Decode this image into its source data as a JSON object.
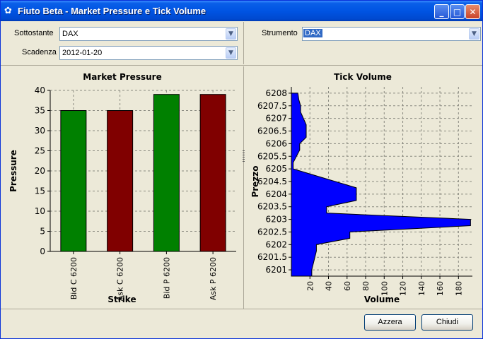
{
  "window": {
    "title": "Fiuto Beta - Market Pressure e Tick Volume"
  },
  "form": {
    "sottostante_label": "Sottostante",
    "sottostante_value": "DAX",
    "scadenza_label": "Scadenza",
    "scadenza_value": "2012-01-20",
    "strumento_label": "Strumento",
    "strumento_value": "DAX"
  },
  "buttons": {
    "reset": "Azzera",
    "close": "Chiudi"
  },
  "colors": {
    "green": "#008000",
    "darkred": "#800000",
    "blue": "#0000FF"
  },
  "chart_data": [
    {
      "type": "bar",
      "title": "Market Pressure",
      "xlabel": "Strike",
      "ylabel": "Pressure",
      "categories": [
        "Bid C 6200",
        "Ask C 6200",
        "Bid P 6200",
        "Ask P 6200"
      ],
      "values": [
        35,
        35,
        39,
        39
      ],
      "bar_colors": [
        "#008000",
        "#800000",
        "#008000",
        "#800000"
      ],
      "ylim": [
        0,
        40
      ],
      "yticks": [
        "0",
        "5",
        "10",
        "15",
        "20",
        "25",
        "30",
        "35",
        "40"
      ],
      "grid": true
    },
    {
      "type": "bar",
      "orientation": "horizontal",
      "title": "Tick Volume",
      "xlabel": "Volume",
      "ylabel": "Prezzo",
      "ylim": [
        6200.75,
        6208.25
      ],
      "xlim": [
        0,
        195
      ],
      "yticks": [
        "6201",
        "6201.5",
        "6202",
        "6202.5",
        "6203",
        "6203.5",
        "6204",
        "6204.5",
        "6205",
        "6205.5",
        "6206",
        "6206.5",
        "6207",
        "6207.5",
        "6208"
      ],
      "xticks": [
        "20",
        "40",
        "60",
        "80",
        "100",
        "120",
        "140",
        "160",
        "180"
      ],
      "bins": [
        {
          "price": 6208,
          "volume": 7
        },
        {
          "price": 6207.75,
          "volume": 8
        },
        {
          "price": 6207.5,
          "volume": 10
        },
        {
          "price": 6207.25,
          "volume": 10
        },
        {
          "price": 6206.75,
          "volume": 16
        },
        {
          "price": 6206.25,
          "volume": 16
        },
        {
          "price": 6206,
          "volume": 9
        },
        {
          "price": 6205.75,
          "volume": 9
        },
        {
          "price": 6205.25,
          "volume": 2
        },
        {
          "price": 6205,
          "volume": 2
        },
        {
          "price": 6204.25,
          "volume": 70
        },
        {
          "price": 6203.75,
          "volume": 70
        },
        {
          "price": 6203.5,
          "volume": 38
        },
        {
          "price": 6203.25,
          "volume": 38
        },
        {
          "price": 6203,
          "volume": 193
        },
        {
          "price": 6202.75,
          "volume": 193
        },
        {
          "price": 6202.5,
          "volume": 63
        },
        {
          "price": 6202.25,
          "volume": 63
        },
        {
          "price": 6202,
          "volume": 27
        },
        {
          "price": 6201.75,
          "volume": 27
        },
        {
          "price": 6201,
          "volume": 22
        },
        {
          "price": 6200.75,
          "volume": 22
        }
      ],
      "grid": true
    }
  ]
}
